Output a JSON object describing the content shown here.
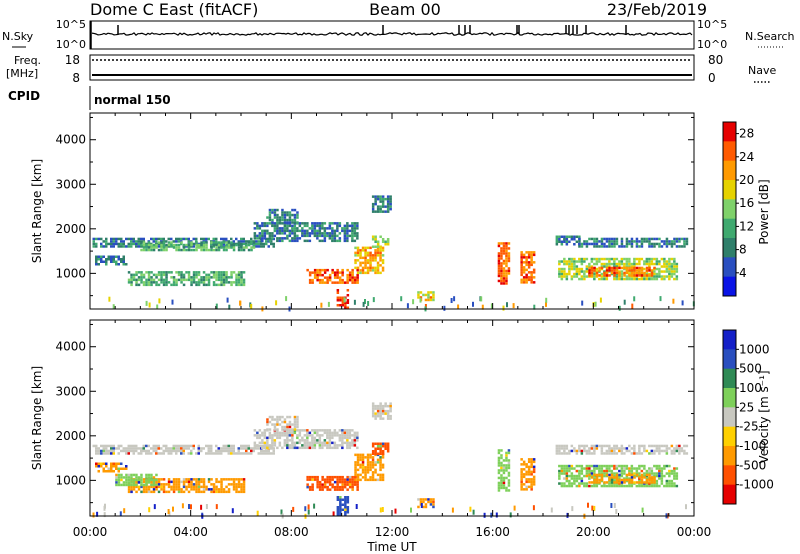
{
  "header": {
    "station": "Dome C East (fitACF)",
    "beam": "Beam 00",
    "date": "23/Feb/2019"
  },
  "summary_panels": {
    "nsky_label": "N.Sky",
    "nsky_ticks": [
      "10^5",
      "10^0"
    ],
    "nsearch_label": "N.Search",
    "nsearch_ticks": [
      "10^5",
      "10^0"
    ],
    "freq_label": "Freq.",
    "freq_unit": "[MHz]",
    "freq_ticks": [
      "18",
      "8"
    ],
    "nave_label": "Nave",
    "nave_ticks": [
      "80",
      "0"
    ],
    "cpid_label": "CPID",
    "cpid_value": "normal 150"
  },
  "colors": {
    "power_scale": [
      "#0a14e6",
      "#2a4fc0",
      "#2f7f6a",
      "#3fa96f",
      "#7fd16a",
      "#e6d200",
      "#ff9a00",
      "#ff5a00",
      "#e60000"
    ],
    "velocity_scale": [
      "#1420c8",
      "#2a4fbf",
      "#2f8a55",
      "#7ed05a",
      "#c8c8c0",
      "#ffd000",
      "#ff9a00",
      "#ff5000",
      "#e60000"
    ]
  },
  "chart_data": [
    {
      "type": "heatmap",
      "ylabel": "Slant Range [km]",
      "xlabel": "",
      "ylim": [
        200,
        4600
      ],
      "x_ticks": [
        "00:00",
        "04:00",
        "08:00",
        "12:00",
        "16:00",
        "20:00",
        "00:00"
      ],
      "y_ticks": [
        1000,
        2000,
        3000,
        4000
      ],
      "colorbar": {
        "label": "Power [dB]",
        "ticks": [
          "4",
          "8",
          "12",
          "16",
          "20",
          "24",
          "28"
        ],
        "range": [
          0,
          30
        ]
      },
      "regions": [
        {
          "t0": 0.1,
          "t1": 7.3,
          "r0": 1600,
          "r1": 1800,
          "value": 8
        },
        {
          "t0": 2.0,
          "t1": 6.5,
          "r0": 1550,
          "r1": 1720,
          "value": 12
        },
        {
          "t0": 6.5,
          "t1": 10.6,
          "r0": 1750,
          "r1": 2150,
          "value": 8
        },
        {
          "t0": 7.0,
          "t1": 8.2,
          "r0": 2150,
          "r1": 2450,
          "value": 8
        },
        {
          "t0": 0.2,
          "t1": 1.4,
          "r0": 1200,
          "r1": 1400,
          "value": 8
        },
        {
          "t0": 1.5,
          "t1": 6.1,
          "r0": 750,
          "r1": 1050,
          "value": 12
        },
        {
          "t0": 8.6,
          "t1": 10.6,
          "r0": 800,
          "r1": 1100,
          "value": 24
        },
        {
          "t0": 10.5,
          "t1": 11.6,
          "r0": 1000,
          "r1": 1600,
          "value": 20
        },
        {
          "t0": 11.2,
          "t1": 11.8,
          "r0": 1600,
          "r1": 1850,
          "value": 16
        },
        {
          "t0": 11.2,
          "t1": 11.9,
          "r0": 2400,
          "r1": 2750,
          "value": 8
        },
        {
          "t0": 9.8,
          "t1": 10.2,
          "r0": 250,
          "r1": 650,
          "value": 28
        },
        {
          "t0": 16.2,
          "t1": 16.6,
          "r0": 800,
          "r1": 1700,
          "value": 24
        },
        {
          "t0": 17.1,
          "t1": 17.6,
          "r0": 800,
          "r1": 1500,
          "value": 24
        },
        {
          "t0": 18.5,
          "t1": 19.4,
          "r0": 1650,
          "r1": 1850,
          "value": 8
        },
        {
          "t0": 19.4,
          "t1": 23.7,
          "r0": 1600,
          "r1": 1800,
          "value": 8
        },
        {
          "t0": 18.6,
          "t1": 23.3,
          "r0": 900,
          "r1": 1350,
          "value": 16
        },
        {
          "t0": 19.8,
          "t1": 22.4,
          "r0": 950,
          "r1": 1150,
          "value": 24
        },
        {
          "t0": 13.0,
          "t1": 13.6,
          "r0": 400,
          "r1": 600,
          "value": 20
        }
      ]
    },
    {
      "type": "heatmap",
      "ylabel": "Slant Range [km]",
      "xlabel": "Time UT",
      "ylim": [
        200,
        4600
      ],
      "x_ticks": [
        "00:00",
        "04:00",
        "08:00",
        "12:00",
        "16:00",
        "20:00",
        "00:00"
      ],
      "y_ticks": [
        1000,
        2000,
        3000,
        4000
      ],
      "colorbar": {
        "label": "Velocity [m s⁻¹]",
        "ticks": [
          "1000",
          "500",
          "100",
          "25",
          "-25",
          "-100",
          "-500",
          "-1000"
        ]
      },
      "regions": [
        {
          "t0": 0.1,
          "t1": 7.3,
          "r0": 1600,
          "r1": 1800,
          "value": "-25..25"
        },
        {
          "t0": 6.5,
          "t1": 10.6,
          "r0": 1750,
          "r1": 2150,
          "value": "-25..25"
        },
        {
          "t0": 7.0,
          "t1": 8.2,
          "r0": 2150,
          "r1": 2450,
          "value": "-25..25"
        },
        {
          "t0": 0.2,
          "t1": 1.4,
          "r0": 1200,
          "r1": 1400,
          "value": "-100"
        },
        {
          "t0": 1.5,
          "t1": 6.1,
          "r0": 750,
          "r1": 1050,
          "value": "-100"
        },
        {
          "t0": 1.0,
          "t1": 2.6,
          "r0": 900,
          "r1": 1150,
          "value": "100"
        },
        {
          "t0": 8.6,
          "t1": 10.6,
          "r0": 800,
          "r1": 1100,
          "value": "-500"
        },
        {
          "t0": 10.5,
          "t1": 11.6,
          "r0": 1000,
          "r1": 1600,
          "value": "-100"
        },
        {
          "t0": 11.2,
          "t1": 11.8,
          "r0": 1600,
          "r1": 1850,
          "value": "-500"
        },
        {
          "t0": 11.2,
          "t1": 11.9,
          "r0": 2400,
          "r1": 2750,
          "value": "-25..25"
        },
        {
          "t0": 9.8,
          "t1": 10.2,
          "r0": 250,
          "r1": 650,
          "value": "500"
        },
        {
          "t0": 16.2,
          "t1": 16.6,
          "r0": 800,
          "r1": 1700,
          "value": "100"
        },
        {
          "t0": 17.1,
          "t1": 17.6,
          "r0": 800,
          "r1": 1500,
          "value": "-100"
        },
        {
          "t0": 18.5,
          "t1": 23.7,
          "r0": 1600,
          "r1": 1800,
          "value": "-25..25"
        },
        {
          "t0": 18.6,
          "t1": 23.3,
          "r0": 900,
          "r1": 1350,
          "value": "100"
        },
        {
          "t0": 19.8,
          "t1": 22.4,
          "r0": 950,
          "r1": 1150,
          "value": "-100"
        },
        {
          "t0": 13.0,
          "t1": 13.6,
          "r0": 400,
          "r1": 600,
          "value": "-100"
        }
      ]
    }
  ],
  "axis": {
    "x_label": "Time UT",
    "x_ticks": [
      "00:00",
      "04:00",
      "08:00",
      "12:00",
      "16:00",
      "20:00",
      "00:00"
    ],
    "y_label": "Slant Range [km]",
    "y_ticks": [
      "1000",
      "2000",
      "3000",
      "4000"
    ]
  },
  "colorbars": {
    "power_label": "Power [dB]",
    "power_ticks": [
      "28",
      "24",
      "20",
      "16",
      "12",
      "8",
      "4"
    ],
    "velocity_label": "Velocity [m s⁻¹]",
    "velocity_ticks": [
      "1000",
      "500",
      "100",
      "25",
      "-25",
      "-100",
      "-500",
      "-1000"
    ]
  }
}
